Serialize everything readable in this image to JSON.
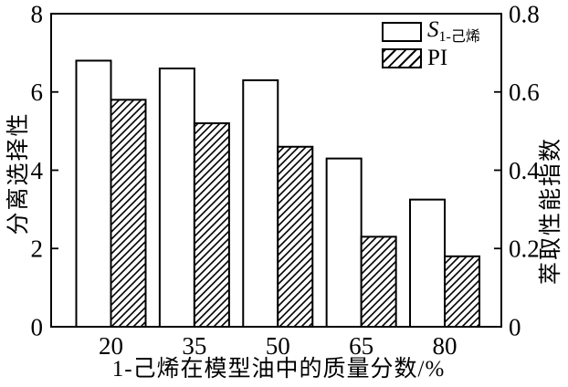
{
  "chart_data": {
    "type": "bar",
    "title": "",
    "categories": [
      "20",
      "35",
      "50",
      "65",
      "80"
    ],
    "series": [
      {
        "name": "S1-己烯",
        "axis": "left",
        "style": "white-outline",
        "values": [
          6.8,
          6.6,
          6.3,
          4.3,
          3.25
        ]
      },
      {
        "name": "PI",
        "axis": "right",
        "style": "diagonal-hatch",
        "values": [
          0.58,
          0.52,
          0.46,
          0.23,
          0.18
        ]
      }
    ],
    "xlabel": "1-己烯在模型油中的质量分数/%",
    "ylabel_left": "分离选择性",
    "ylabel_right": "萃取性能指数",
    "ylim_left": [
      0,
      8
    ],
    "ylim_right": [
      0,
      0.8
    ],
    "yticks_left": [
      "0",
      "2",
      "4",
      "6",
      "8"
    ],
    "yticks_right": [
      "0",
      "0.2",
      "0.4",
      "0.6",
      "0.8"
    ],
    "grid": false,
    "legend": {
      "position": "top-right-inside",
      "entry1_main": "S",
      "entry1_sub": "1-己烯",
      "entry2": "PI"
    },
    "colors": {
      "background": "#ffffff",
      "axis": "#000000",
      "bar_fill": "#ffffff",
      "bar_stroke": "#000000",
      "hatch_lines": "#000000",
      "text": "#000000"
    }
  }
}
